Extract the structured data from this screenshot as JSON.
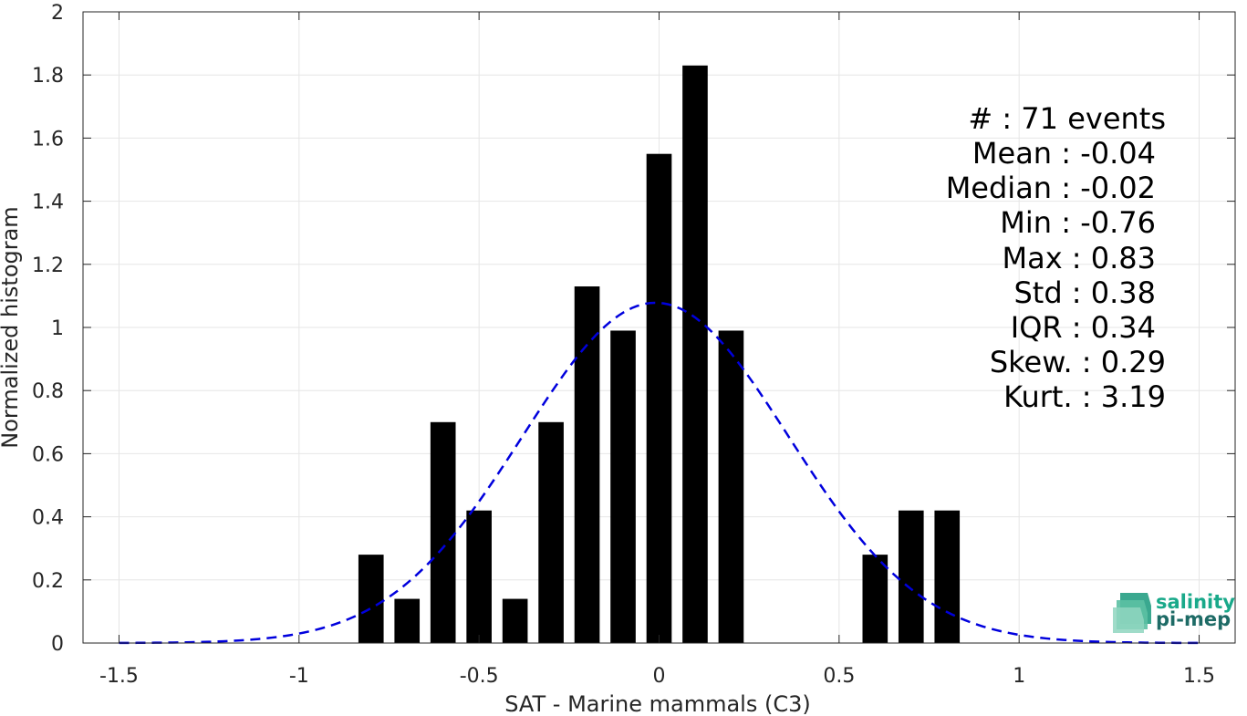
{
  "chart_data": {
    "type": "bar",
    "xlabel": "SAT - Marine mammals (C3)",
    "ylabel": "Normalized histogram",
    "xlim": [
      -1.6,
      1.6
    ],
    "ylim": [
      0,
      2
    ],
    "xticks": [
      "-1.5",
      "-1",
      "-0.5",
      "0",
      "0.5",
      "1",
      "1.5"
    ],
    "yticks": [
      "0",
      "0.2",
      "0.4",
      "0.6",
      "0.8",
      "1",
      "1.2",
      "1.4",
      "1.6",
      "1.8",
      "2"
    ],
    "grid": true,
    "bar_width": 0.07,
    "bars": [
      {
        "x": -0.8,
        "y": 0.28
      },
      {
        "x": -0.7,
        "y": 0.14
      },
      {
        "x": -0.6,
        "y": 0.7
      },
      {
        "x": -0.5,
        "y": 0.42
      },
      {
        "x": -0.4,
        "y": 0.14
      },
      {
        "x": -0.3,
        "y": 0.7
      },
      {
        "x": -0.2,
        "y": 1.13
      },
      {
        "x": -0.1,
        "y": 0.99
      },
      {
        "x": 0.0,
        "y": 1.55
      },
      {
        "x": 0.1,
        "y": 1.83
      },
      {
        "x": 0.2,
        "y": 0.99
      },
      {
        "x": 0.6,
        "y": 0.28
      },
      {
        "x": 0.7,
        "y": 0.42
      },
      {
        "x": 0.8,
        "y": 0.42
      }
    ],
    "fit_curve": {
      "type": "gaussian",
      "style": "dashed",
      "color": "#0000dd",
      "mean": -0.01,
      "std": 0.37,
      "x_range": [
        -1.5,
        1.5
      ]
    },
    "stats": [
      "#  : 71 events",
      "Mean : -0.04",
      "Median : -0.02",
      "Min : -0.76",
      "Max : 0.83",
      "Std : 0.38",
      "IQR : 0.34",
      "Skew. : 0.29",
      "Kurt. : 3.19"
    ],
    "colors": {
      "bars": "#000000",
      "grid": "#e6e6e6",
      "axes": "#262626"
    }
  },
  "logo": {
    "line1": "salinity",
    "line2": "pi-mep"
  }
}
